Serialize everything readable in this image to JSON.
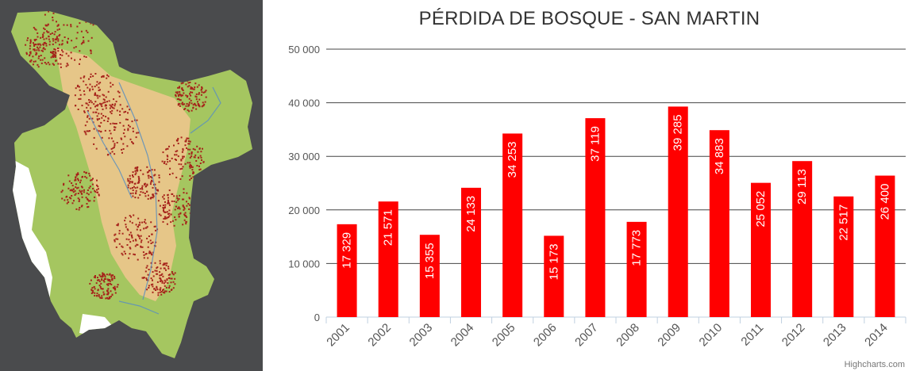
{
  "map": {
    "region": "San Martin",
    "colors": {
      "background": "#4a4b4d",
      "forest": "#a5c660",
      "non_forest": "#e6c688",
      "forest_loss": "#a6231b",
      "no_data": "#ffffff",
      "rivers": "#5a8fc0"
    }
  },
  "chart_data": {
    "type": "bar",
    "title": "PÉRDIDA DE BOSQUE - SAN MARTIN",
    "categories": [
      "2001",
      "2002",
      "2003",
      "2004",
      "2005",
      "2006",
      "2007",
      "2008",
      "2009",
      "2010",
      "2011",
      "2012",
      "2013",
      "2014"
    ],
    "values": [
      17329,
      21571,
      15355,
      24133,
      34253,
      15173,
      37119,
      17773,
      39285,
      34883,
      25052,
      29113,
      22517,
      26400
    ],
    "data_labels": [
      "17 329",
      "21 571",
      "15 355",
      "24 133",
      "34 253",
      "15 173",
      "37 119",
      "17 773",
      "39 285",
      "34 883",
      "25 052",
      "29 113",
      "22 517",
      "26 400"
    ],
    "yticks": [
      0,
      10000,
      20000,
      30000,
      40000,
      50000
    ],
    "ytick_labels": [
      "0",
      "10 000",
      "20 000",
      "30 000",
      "40 000",
      "50 000"
    ],
    "ylim": [
      0,
      50000
    ],
    "xlabel": "",
    "ylabel": "",
    "bar_color": "#ff0000",
    "grid": true,
    "legend": "none"
  },
  "credits": "Highcharts.com"
}
